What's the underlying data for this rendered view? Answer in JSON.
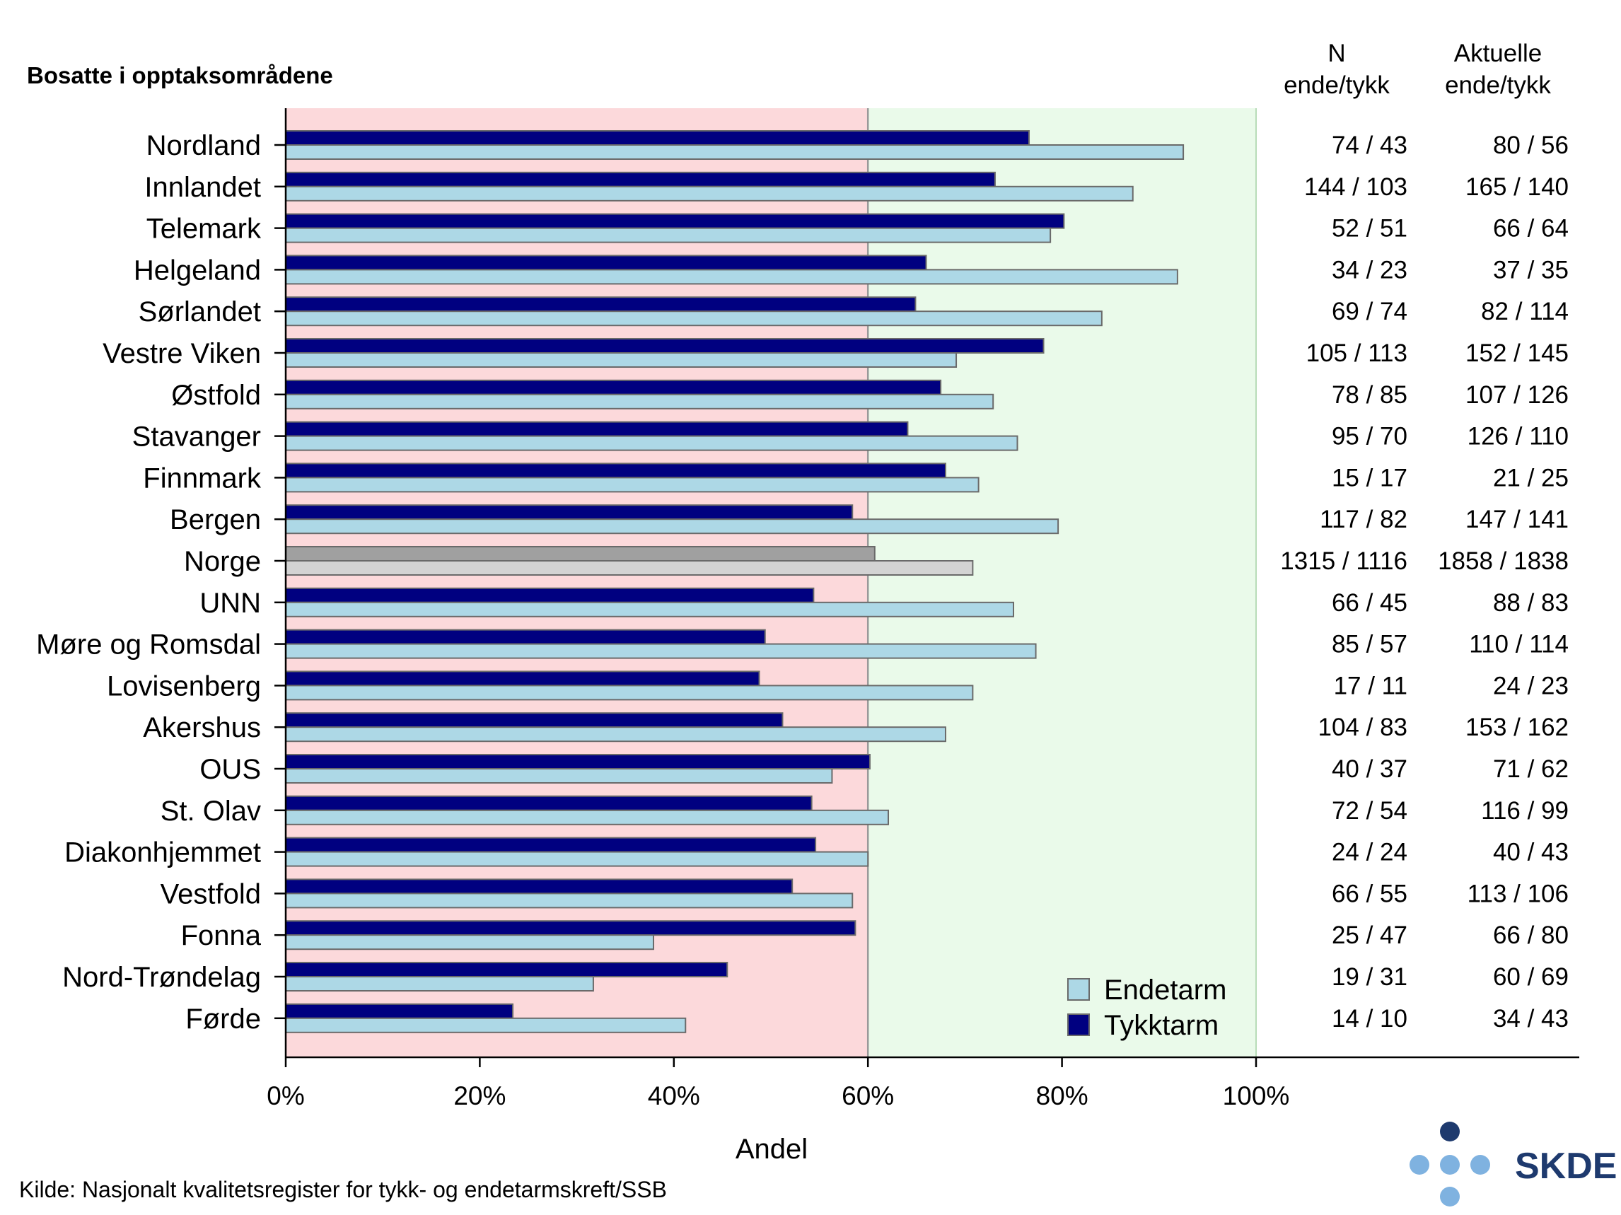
{
  "chart_data": {
    "type": "bar",
    "orientation": "horizontal",
    "subtitle": "Bosatte i opptaksområdene",
    "xlabel": "Andel",
    "xlim": [
      0,
      100
    ],
    "xticks": [
      "0%",
      "20%",
      "40%",
      "60%",
      "80%",
      "100%"
    ],
    "reference_line": 60,
    "zones": [
      {
        "from": 0,
        "to": 60,
        "color": "#fcd9db"
      },
      {
        "from": 60,
        "to": 100,
        "color": "#eafaea"
      }
    ],
    "categories": [
      "Nordland",
      "Innlandet",
      "Telemark",
      "Helgeland",
      "Sørlandet",
      "Vestre Viken",
      "Østfold",
      "Stavanger",
      "Finnmark",
      "Bergen",
      "Norge",
      "UNN",
      "Møre og Romsdal",
      "Lovisenberg",
      "Akershus",
      "OUS",
      "St. Olav",
      "Diakonhjemmet",
      "Vestfold",
      "Fonna",
      "Nord-Trøndelag",
      "Førde"
    ],
    "highlight_category": "Norge",
    "series": [
      {
        "name": "Tykktarm",
        "color": "#000080",
        "highlight_color": "#a0a0a0",
        "values": [
          76.6,
          73.1,
          80.2,
          66.0,
          64.9,
          78.1,
          67.5,
          64.1,
          68.0,
          58.4,
          60.7,
          54.4,
          49.4,
          48.8,
          51.2,
          60.2,
          54.2,
          54.6,
          52.2,
          58.7,
          45.5,
          23.4
        ]
      },
      {
        "name": "Endetarm",
        "color": "#add8e6",
        "highlight_color": "#d3d3d3",
        "values": [
          92.5,
          87.3,
          78.8,
          91.9,
          84.1,
          69.1,
          72.9,
          75.4,
          71.4,
          79.6,
          70.8,
          75.0,
          77.3,
          70.8,
          68.0,
          56.3,
          62.1,
          60.0,
          58.4,
          37.9,
          31.7,
          41.2
        ]
      }
    ],
    "legend": {
      "position": "bottom-right",
      "entries": [
        "Endetarm",
        "Tykktarm"
      ]
    },
    "table_columns": [
      {
        "header_line1": "N",
        "header_line2": "ende/tykk",
        "values": [
          "74 / 43",
          "144 / 103",
          "52 / 51",
          "34 / 23",
          "69 / 74",
          "105 / 113",
          "78 / 85",
          "95 / 70",
          "15 / 17",
          "117 / 82",
          "1315 / 1116",
          "66 / 45",
          "85 / 57",
          "17 / 11",
          "104 / 83",
          "40 / 37",
          "72 / 54",
          "24 / 24",
          "66 / 55",
          "25 / 47",
          "19 / 31",
          "14 / 10"
        ]
      },
      {
        "header_line1": "Aktuelle",
        "header_line2": "ende/tykk",
        "values": [
          "80 / 56",
          "165 / 140",
          "66 / 64",
          "37 / 35",
          "82 / 114",
          "152 / 145",
          "107 / 126",
          "126 / 110",
          "21 / 25",
          "147 / 141",
          "1858 / 1838",
          "88 / 83",
          "110 / 114",
          "24 / 23",
          "153 / 162",
          "71 / 62",
          "116 / 99",
          "40 / 43",
          "113 / 106",
          "66 / 80",
          "60 / 69",
          "34 / 43"
        ]
      }
    ],
    "source": "Kilde: Nasjonalt kvalitetsregister for tykk- og endetarmskreft/SSB",
    "logo_text": "SKDE"
  }
}
